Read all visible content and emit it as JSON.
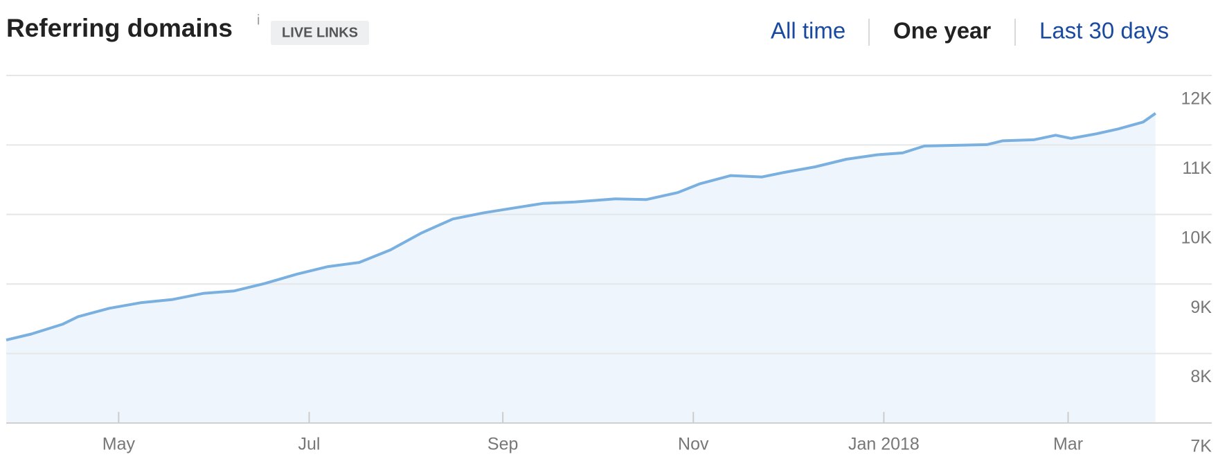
{
  "header": {
    "title": "Referring domains",
    "info": "i",
    "badge": "LIVE LINKS",
    "ranges": [
      {
        "label": "All time",
        "active": false
      },
      {
        "label": "One year",
        "active": true
      },
      {
        "label": "Last 30 days",
        "active": false
      }
    ]
  },
  "chart_data": {
    "type": "area",
    "x": [
      -36,
      -28,
      -18,
      -13,
      -3,
      7,
      17,
      27,
      37,
      47,
      57,
      67,
      77,
      87,
      97,
      107,
      117,
      126,
      136,
      146,
      159,
      169,
      179,
      186,
      196,
      206,
      213,
      223,
      233,
      243,
      251,
      258,
      268,
      278,
      283,
      293,
      300,
      305,
      313,
      320,
      328,
      332
    ],
    "values": [
      8194,
      8280,
      8420,
      8530,
      8650,
      8730,
      8775,
      8865,
      8900,
      9010,
      9140,
      9250,
      9310,
      9490,
      9735,
      9935,
      10025,
      10090,
      10160,
      10180,
      10225,
      10215,
      10315,
      10440,
      10560,
      10540,
      10605,
      10685,
      10795,
      10860,
      10885,
      10985,
      10995,
      11005,
      11060,
      11075,
      11140,
      11095,
      11160,
      11230,
      11330,
      11455
    ],
    "color": "#7ab0e0",
    "fill_color": "#eef5fc",
    "xlim": [
      -36,
      350
    ],
    "xticks": [
      {
        "value": 0,
        "label": "May"
      },
      {
        "value": 61,
        "label": "Jul"
      },
      {
        "value": 123,
        "label": "Sep"
      },
      {
        "value": 184,
        "label": "Nov"
      },
      {
        "value": 245,
        "label": "Jan 2018"
      },
      {
        "value": 304,
        "label": "Mar"
      }
    ],
    "ylim": [
      7000,
      12000
    ],
    "yticks": [
      {
        "value": 7000,
        "label": "7K"
      },
      {
        "value": 8000,
        "label": "8K"
      },
      {
        "value": 9000,
        "label": "9K"
      },
      {
        "value": 10000,
        "label": "10K"
      },
      {
        "value": 11000,
        "label": "11K"
      },
      {
        "value": 12000,
        "label": "12K"
      }
    ],
    "grid": true
  }
}
